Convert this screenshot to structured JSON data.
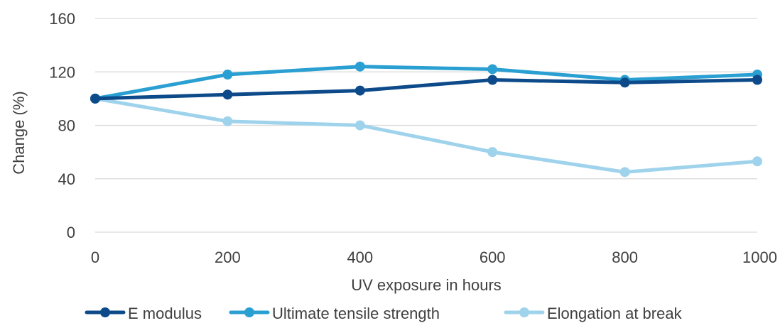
{
  "chart_data": {
    "type": "line",
    "title": "",
    "xlabel": "UV exposure in hours",
    "ylabel": "Change (%)",
    "x": [
      0,
      200,
      400,
      600,
      800,
      1000
    ],
    "x_tick_labels": [
      "0",
      "200",
      "400",
      "600",
      "800",
      "1000"
    ],
    "xlim": [
      0,
      1000
    ],
    "ylim": [
      0,
      160
    ],
    "y_ticks": [
      0,
      40,
      80,
      120,
      160
    ],
    "y_tick_labels": [
      "0",
      "40",
      "80",
      "120",
      "160"
    ],
    "grid": "horizontal",
    "legend_position": "bottom",
    "series": [
      {
        "name": "E modulus",
        "color": "#0d4a8a",
        "values": [
          100,
          103,
          106,
          114,
          112,
          114
        ]
      },
      {
        "name": "Ultimate tensile strength",
        "color": "#2a9fd2",
        "values": [
          100,
          118,
          124,
          122,
          114,
          118
        ]
      },
      {
        "name": "Elongation at break",
        "color": "#9fd3ec",
        "values": [
          100,
          83,
          80,
          60,
          45,
          53
        ]
      }
    ]
  }
}
